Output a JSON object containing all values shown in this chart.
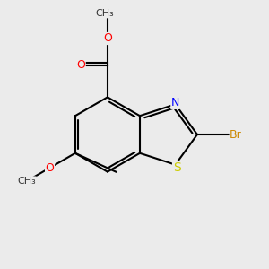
{
  "background_color": "#ebebeb",
  "bond_color": "#000000",
  "bond_width": 1.5,
  "atom_colors": {
    "O": "#ff0000",
    "N": "#0000ff",
    "S": "#cccc00",
    "Br": "#cc8800",
    "C": "#000000"
  },
  "font_size": 9,
  "fig_size": [
    3.0,
    3.0
  ],
  "dpi": 100
}
